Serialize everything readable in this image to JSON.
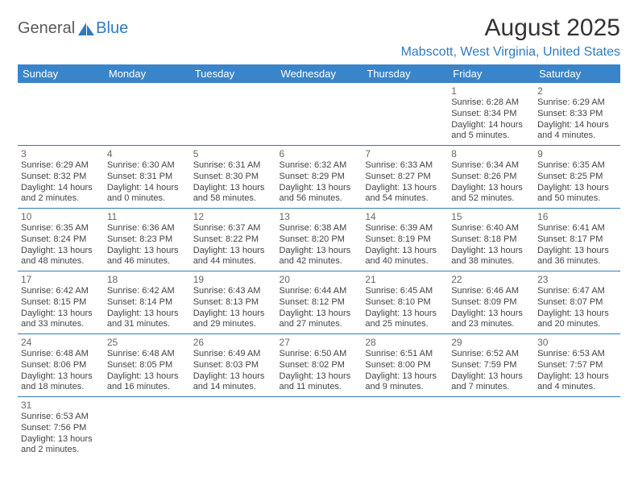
{
  "logo": {
    "text1": "General",
    "text2": "Blue"
  },
  "title": "August 2025",
  "location": "Mabscott, West Virginia, United States",
  "colors": {
    "header_bg": "#3a85c9",
    "header_fg": "#ffffff",
    "accent": "#2f7bbf",
    "rule": "#2f7bbf",
    "text": "#333333",
    "muted": "#666666",
    "body": "#444444"
  },
  "day_headers": [
    "Sunday",
    "Monday",
    "Tuesday",
    "Wednesday",
    "Thursday",
    "Friday",
    "Saturday"
  ],
  "weeks": [
    [
      null,
      null,
      null,
      null,
      null,
      {
        "n": "1",
        "sr": "Sunrise: 6:28 AM",
        "ss": "Sunset: 8:34 PM",
        "dl1": "Daylight: 14 hours",
        "dl2": "and 5 minutes."
      },
      {
        "n": "2",
        "sr": "Sunrise: 6:29 AM",
        "ss": "Sunset: 8:33 PM",
        "dl1": "Daylight: 14 hours",
        "dl2": "and 4 minutes."
      }
    ],
    [
      {
        "n": "3",
        "sr": "Sunrise: 6:29 AM",
        "ss": "Sunset: 8:32 PM",
        "dl1": "Daylight: 14 hours",
        "dl2": "and 2 minutes."
      },
      {
        "n": "4",
        "sr": "Sunrise: 6:30 AM",
        "ss": "Sunset: 8:31 PM",
        "dl1": "Daylight: 14 hours",
        "dl2": "and 0 minutes."
      },
      {
        "n": "5",
        "sr": "Sunrise: 6:31 AM",
        "ss": "Sunset: 8:30 PM",
        "dl1": "Daylight: 13 hours",
        "dl2": "and 58 minutes."
      },
      {
        "n": "6",
        "sr": "Sunrise: 6:32 AM",
        "ss": "Sunset: 8:29 PM",
        "dl1": "Daylight: 13 hours",
        "dl2": "and 56 minutes."
      },
      {
        "n": "7",
        "sr": "Sunrise: 6:33 AM",
        "ss": "Sunset: 8:27 PM",
        "dl1": "Daylight: 13 hours",
        "dl2": "and 54 minutes."
      },
      {
        "n": "8",
        "sr": "Sunrise: 6:34 AM",
        "ss": "Sunset: 8:26 PM",
        "dl1": "Daylight: 13 hours",
        "dl2": "and 52 minutes."
      },
      {
        "n": "9",
        "sr": "Sunrise: 6:35 AM",
        "ss": "Sunset: 8:25 PM",
        "dl1": "Daylight: 13 hours",
        "dl2": "and 50 minutes."
      }
    ],
    [
      {
        "n": "10",
        "sr": "Sunrise: 6:35 AM",
        "ss": "Sunset: 8:24 PM",
        "dl1": "Daylight: 13 hours",
        "dl2": "and 48 minutes."
      },
      {
        "n": "11",
        "sr": "Sunrise: 6:36 AM",
        "ss": "Sunset: 8:23 PM",
        "dl1": "Daylight: 13 hours",
        "dl2": "and 46 minutes."
      },
      {
        "n": "12",
        "sr": "Sunrise: 6:37 AM",
        "ss": "Sunset: 8:22 PM",
        "dl1": "Daylight: 13 hours",
        "dl2": "and 44 minutes."
      },
      {
        "n": "13",
        "sr": "Sunrise: 6:38 AM",
        "ss": "Sunset: 8:20 PM",
        "dl1": "Daylight: 13 hours",
        "dl2": "and 42 minutes."
      },
      {
        "n": "14",
        "sr": "Sunrise: 6:39 AM",
        "ss": "Sunset: 8:19 PM",
        "dl1": "Daylight: 13 hours",
        "dl2": "and 40 minutes."
      },
      {
        "n": "15",
        "sr": "Sunrise: 6:40 AM",
        "ss": "Sunset: 8:18 PM",
        "dl1": "Daylight: 13 hours",
        "dl2": "and 38 minutes."
      },
      {
        "n": "16",
        "sr": "Sunrise: 6:41 AM",
        "ss": "Sunset: 8:17 PM",
        "dl1": "Daylight: 13 hours",
        "dl2": "and 36 minutes."
      }
    ],
    [
      {
        "n": "17",
        "sr": "Sunrise: 6:42 AM",
        "ss": "Sunset: 8:15 PM",
        "dl1": "Daylight: 13 hours",
        "dl2": "and 33 minutes."
      },
      {
        "n": "18",
        "sr": "Sunrise: 6:42 AM",
        "ss": "Sunset: 8:14 PM",
        "dl1": "Daylight: 13 hours",
        "dl2": "and 31 minutes."
      },
      {
        "n": "19",
        "sr": "Sunrise: 6:43 AM",
        "ss": "Sunset: 8:13 PM",
        "dl1": "Daylight: 13 hours",
        "dl2": "and 29 minutes."
      },
      {
        "n": "20",
        "sr": "Sunrise: 6:44 AM",
        "ss": "Sunset: 8:12 PM",
        "dl1": "Daylight: 13 hours",
        "dl2": "and 27 minutes."
      },
      {
        "n": "21",
        "sr": "Sunrise: 6:45 AM",
        "ss": "Sunset: 8:10 PM",
        "dl1": "Daylight: 13 hours",
        "dl2": "and 25 minutes."
      },
      {
        "n": "22",
        "sr": "Sunrise: 6:46 AM",
        "ss": "Sunset: 8:09 PM",
        "dl1": "Daylight: 13 hours",
        "dl2": "and 23 minutes."
      },
      {
        "n": "23",
        "sr": "Sunrise: 6:47 AM",
        "ss": "Sunset: 8:07 PM",
        "dl1": "Daylight: 13 hours",
        "dl2": "and 20 minutes."
      }
    ],
    [
      {
        "n": "24",
        "sr": "Sunrise: 6:48 AM",
        "ss": "Sunset: 8:06 PM",
        "dl1": "Daylight: 13 hours",
        "dl2": "and 18 minutes."
      },
      {
        "n": "25",
        "sr": "Sunrise: 6:48 AM",
        "ss": "Sunset: 8:05 PM",
        "dl1": "Daylight: 13 hours",
        "dl2": "and 16 minutes."
      },
      {
        "n": "26",
        "sr": "Sunrise: 6:49 AM",
        "ss": "Sunset: 8:03 PM",
        "dl1": "Daylight: 13 hours",
        "dl2": "and 14 minutes."
      },
      {
        "n": "27",
        "sr": "Sunrise: 6:50 AM",
        "ss": "Sunset: 8:02 PM",
        "dl1": "Daylight: 13 hours",
        "dl2": "and 11 minutes."
      },
      {
        "n": "28",
        "sr": "Sunrise: 6:51 AM",
        "ss": "Sunset: 8:00 PM",
        "dl1": "Daylight: 13 hours",
        "dl2": "and 9 minutes."
      },
      {
        "n": "29",
        "sr": "Sunrise: 6:52 AM",
        "ss": "Sunset: 7:59 PM",
        "dl1": "Daylight: 13 hours",
        "dl2": "and 7 minutes."
      },
      {
        "n": "30",
        "sr": "Sunrise: 6:53 AM",
        "ss": "Sunset: 7:57 PM",
        "dl1": "Daylight: 13 hours",
        "dl2": "and 4 minutes."
      }
    ],
    [
      {
        "n": "31",
        "sr": "Sunrise: 6:53 AM",
        "ss": "Sunset: 7:56 PM",
        "dl1": "Daylight: 13 hours",
        "dl2": "and 2 minutes."
      },
      null,
      null,
      null,
      null,
      null,
      null
    ]
  ]
}
